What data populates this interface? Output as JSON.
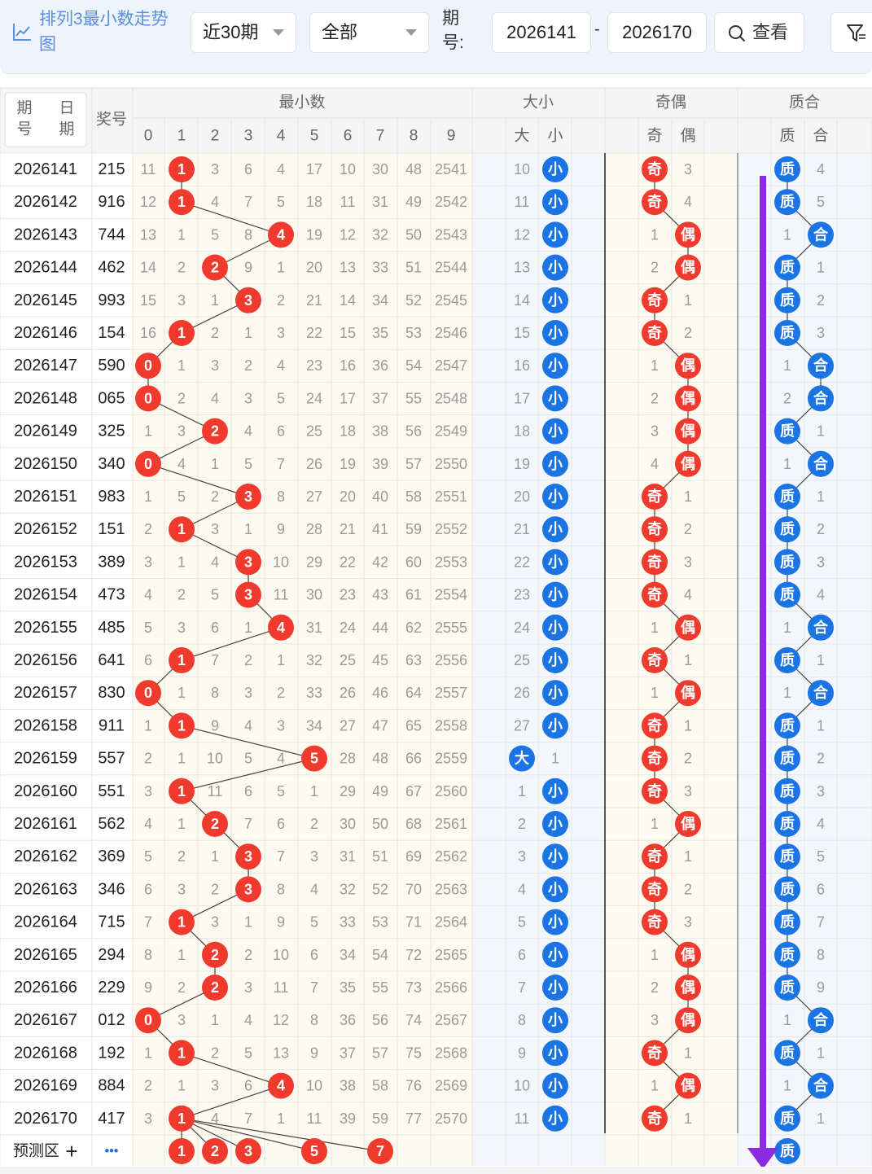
{
  "toolbar": {
    "title": "排列3最小数走势图",
    "range_select": "近30期",
    "type_select": "全部",
    "issue_label": "期号:",
    "issue_from": "2026141",
    "issue_to": "2026170",
    "separator": "-",
    "view_button": "查看",
    "icons": {
      "chart": "chart-line-icon",
      "search": "search-icon",
      "filter": "filter-icon",
      "caret": "caret-down-icon"
    }
  },
  "header": {
    "issue_col": "期号",
    "date_col": "日期",
    "prize_col": "奖号",
    "groups": [
      "最小数",
      "大小",
      "奇偶",
      "质合"
    ],
    "min_digits": [
      "0",
      "1",
      "2",
      "3",
      "4",
      "5",
      "6",
      "7",
      "8",
      "9"
    ],
    "size_labels": [
      "大",
      "小"
    ],
    "parity_labels": [
      "奇",
      "偶"
    ],
    "prime_labels": [
      "质",
      "合"
    ]
  },
  "rows": [
    {
      "issue": "2026141",
      "prize": "215",
      "min": [
        11,
        1,
        3,
        6,
        4,
        17,
        10,
        30,
        48,
        2541
      ],
      "size": [
        10,
        "小"
      ],
      "parity": [
        "奇",
        3
      ],
      "prime": [
        "质",
        4
      ]
    },
    {
      "issue": "2026142",
      "prize": "916",
      "min": [
        12,
        1,
        4,
        7,
        5,
        18,
        11,
        31,
        49,
        2542
      ],
      "size": [
        11,
        "小"
      ],
      "parity": [
        "奇",
        4
      ],
      "prime": [
        "质",
        5
      ]
    },
    {
      "issue": "2026143",
      "prize": "744",
      "min": [
        13,
        1,
        5,
        8,
        4,
        19,
        12,
        32,
        50,
        2543
      ],
      "size": [
        12,
        "小"
      ],
      "parity": [
        1,
        "偶"
      ],
      "prime": [
        1,
        "合"
      ]
    },
    {
      "issue": "2026144",
      "prize": "462",
      "min": [
        14,
        2,
        2,
        9,
        1,
        20,
        13,
        33,
        51,
        2544
      ],
      "size": [
        13,
        "小"
      ],
      "parity": [
        2,
        "偶"
      ],
      "prime": [
        "质",
        1
      ]
    },
    {
      "issue": "2026145",
      "prize": "993",
      "min": [
        15,
        3,
        1,
        3,
        2,
        21,
        14,
        34,
        52,
        2545
      ],
      "size": [
        14,
        "小"
      ],
      "parity": [
        "奇",
        1
      ],
      "prime": [
        "质",
        2
      ]
    },
    {
      "issue": "2026146",
      "prize": "154",
      "min": [
        16,
        1,
        2,
        1,
        3,
        22,
        15,
        35,
        53,
        2546
      ],
      "size": [
        15,
        "小"
      ],
      "parity": [
        "奇",
        2
      ],
      "prime": [
        "质",
        3
      ]
    },
    {
      "issue": "2026147",
      "prize": "590",
      "min": [
        0,
        1,
        3,
        2,
        4,
        23,
        16,
        36,
        54,
        2547
      ],
      "size": [
        16,
        "小"
      ],
      "parity": [
        1,
        "偶"
      ],
      "prime": [
        1,
        "合"
      ]
    },
    {
      "issue": "2026148",
      "prize": "065",
      "min": [
        0,
        2,
        4,
        3,
        5,
        24,
        17,
        37,
        55,
        2548
      ],
      "size": [
        17,
        "小"
      ],
      "parity": [
        2,
        "偶"
      ],
      "prime": [
        2,
        "合"
      ]
    },
    {
      "issue": "2026149",
      "prize": "325",
      "min": [
        1,
        3,
        2,
        4,
        6,
        25,
        18,
        38,
        56,
        2549
      ],
      "size": [
        18,
        "小"
      ],
      "parity": [
        3,
        "偶"
      ],
      "prime": [
        "质",
        1
      ]
    },
    {
      "issue": "2026150",
      "prize": "340",
      "min": [
        0,
        4,
        1,
        5,
        7,
        26,
        19,
        39,
        57,
        2550
      ],
      "size": [
        19,
        "小"
      ],
      "parity": [
        4,
        "偶"
      ],
      "prime": [
        1,
        "合"
      ]
    },
    {
      "issue": "2026151",
      "prize": "983",
      "min": [
        1,
        5,
        2,
        3,
        8,
        27,
        20,
        40,
        58,
        2551
      ],
      "size": [
        20,
        "小"
      ],
      "parity": [
        "奇",
        1
      ],
      "prime": [
        "质",
        1
      ]
    },
    {
      "issue": "2026152",
      "prize": "151",
      "min": [
        2,
        1,
        3,
        1,
        9,
        28,
        21,
        41,
        59,
        2552
      ],
      "size": [
        21,
        "小"
      ],
      "parity": [
        "奇",
        2
      ],
      "prime": [
        "质",
        2
      ]
    },
    {
      "issue": "2026153",
      "prize": "389",
      "min": [
        3,
        1,
        4,
        3,
        10,
        29,
        22,
        42,
        60,
        2553
      ],
      "size": [
        22,
        "小"
      ],
      "parity": [
        "奇",
        3
      ],
      "prime": [
        "质",
        3
      ]
    },
    {
      "issue": "2026154",
      "prize": "473",
      "min": [
        4,
        2,
        5,
        3,
        11,
        30,
        23,
        43,
        61,
        2554
      ],
      "size": [
        23,
        "小"
      ],
      "parity": [
        "奇",
        4
      ],
      "prime": [
        "质",
        4
      ]
    },
    {
      "issue": "2026155",
      "prize": "485",
      "min": [
        5,
        3,
        6,
        1,
        4,
        31,
        24,
        44,
        62,
        2555
      ],
      "size": [
        24,
        "小"
      ],
      "parity": [
        1,
        "偶"
      ],
      "prime": [
        1,
        "合"
      ]
    },
    {
      "issue": "2026156",
      "prize": "641",
      "min": [
        6,
        1,
        7,
        2,
        1,
        32,
        25,
        45,
        63,
        2556
      ],
      "size": [
        25,
        "小"
      ],
      "parity": [
        "奇",
        1
      ],
      "prime": [
        "质",
        1
      ]
    },
    {
      "issue": "2026157",
      "prize": "830",
      "min": [
        0,
        1,
        8,
        3,
        2,
        33,
        26,
        46,
        64,
        2557
      ],
      "size": [
        26,
        "小"
      ],
      "parity": [
        1,
        "偶"
      ],
      "prime": [
        1,
        "合"
      ]
    },
    {
      "issue": "2026158",
      "prize": "911",
      "min": [
        1,
        1,
        9,
        4,
        3,
        34,
        27,
        47,
        65,
        2558
      ],
      "size": [
        27,
        "小"
      ],
      "parity": [
        "奇",
        1
      ],
      "prime": [
        "质",
        1
      ]
    },
    {
      "issue": "2026159",
      "prize": "557",
      "min": [
        2,
        1,
        10,
        5,
        4,
        5,
        28,
        48,
        66,
        2559
      ],
      "size": [
        "大",
        1
      ],
      "parity": [
        "奇",
        2
      ],
      "prime": [
        "质",
        2
      ]
    },
    {
      "issue": "2026160",
      "prize": "551",
      "min": [
        3,
        1,
        11,
        6,
        5,
        1,
        29,
        49,
        67,
        2560
      ],
      "size": [
        1,
        "小"
      ],
      "parity": [
        "奇",
        3
      ],
      "prime": [
        "质",
        3
      ]
    },
    {
      "issue": "2026161",
      "prize": "562",
      "min": [
        4,
        1,
        2,
        7,
        6,
        2,
        30,
        50,
        68,
        2561
      ],
      "size": [
        2,
        "小"
      ],
      "parity": [
        1,
        "偶"
      ],
      "prime": [
        "质",
        4
      ]
    },
    {
      "issue": "2026162",
      "prize": "369",
      "min": [
        5,
        2,
        1,
        3,
        7,
        3,
        31,
        51,
        69,
        2562
      ],
      "size": [
        3,
        "小"
      ],
      "parity": [
        "奇",
        1
      ],
      "prime": [
        "质",
        5
      ]
    },
    {
      "issue": "2026163",
      "prize": "346",
      "min": [
        6,
        3,
        2,
        3,
        8,
        4,
        32,
        52,
        70,
        2563
      ],
      "size": [
        4,
        "小"
      ],
      "parity": [
        "奇",
        2
      ],
      "prime": [
        "质",
        6
      ]
    },
    {
      "issue": "2026164",
      "prize": "715",
      "min": [
        7,
        1,
        3,
        1,
        9,
        5,
        33,
        53,
        71,
        2564
      ],
      "size": [
        5,
        "小"
      ],
      "parity": [
        "奇",
        3
      ],
      "prime": [
        "质",
        7
      ]
    },
    {
      "issue": "2026165",
      "prize": "294",
      "min": [
        8,
        1,
        2,
        2,
        10,
        6,
        34,
        54,
        72,
        2565
      ],
      "size": [
        6,
        "小"
      ],
      "parity": [
        1,
        "偶"
      ],
      "prime": [
        "质",
        8
      ]
    },
    {
      "issue": "2026166",
      "prize": "229",
      "min": [
        9,
        2,
        2,
        3,
        11,
        7,
        35,
        55,
        73,
        2566
      ],
      "size": [
        7,
        "小"
      ],
      "parity": [
        2,
        "偶"
      ],
      "prime": [
        "质",
        9
      ]
    },
    {
      "issue": "2026167",
      "prize": "012",
      "min": [
        0,
        3,
        1,
        4,
        12,
        8,
        36,
        56,
        74,
        2567
      ],
      "size": [
        8,
        "小"
      ],
      "parity": [
        3,
        "偶"
      ],
      "prime": [
        1,
        "合"
      ]
    },
    {
      "issue": "2026168",
      "prize": "192",
      "min": [
        1,
        1,
        2,
        5,
        13,
        9,
        37,
        57,
        75,
        2568
      ],
      "size": [
        9,
        "小"
      ],
      "parity": [
        "奇",
        1
      ],
      "prime": [
        "质",
        1
      ]
    },
    {
      "issue": "2026169",
      "prize": "884",
      "min": [
        2,
        1,
        3,
        6,
        4,
        10,
        38,
        58,
        76,
        2569
      ],
      "size": [
        10,
        "小"
      ],
      "parity": [
        1,
        "偶"
      ],
      "prime": [
        1,
        "合"
      ]
    },
    {
      "issue": "2026170",
      "prize": "417",
      "min": [
        3,
        1,
        4,
        7,
        1,
        11,
        39,
        59,
        77,
        2570
      ],
      "size": [
        11,
        "小"
      ],
      "parity": [
        "奇",
        1
      ],
      "prime": [
        "质",
        1
      ]
    }
  ],
  "hit_digits": [
    1,
    1,
    4,
    2,
    3,
    1,
    0,
    0,
    2,
    0,
    3,
    1,
    3,
    3,
    4,
    1,
    0,
    1,
    5,
    1,
    2,
    3,
    3,
    1,
    2,
    2,
    0,
    1,
    4,
    1
  ],
  "prediction": {
    "label": "预测区",
    "plus": "+",
    "more": "•••",
    "digits": [
      "1",
      "2",
      "3",
      "5",
      "7"
    ],
    "prime": "质"
  },
  "colors": {
    "red": "#f03a2e",
    "blue": "#1b74e4",
    "purple": "#8a2be2",
    "title_blue": "#5d8ee0",
    "cell_bg": "#fdfaf0",
    "band_bg": "#f3f7fc",
    "header_bg": "#f5f5f5"
  }
}
